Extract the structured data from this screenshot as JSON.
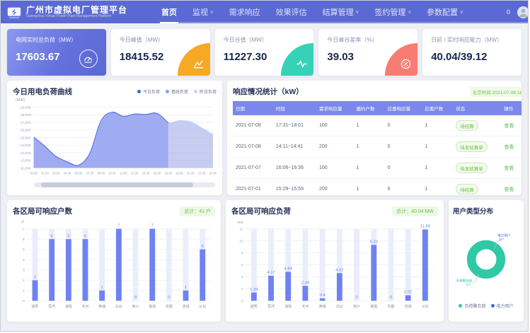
{
  "app": {
    "title": "广州市虚拟电厂管理平台",
    "subtitle": "Guangzhou Virtual Power Plant Management Platform",
    "nav": [
      {
        "label": "首页",
        "active": true,
        "dropdown": false
      },
      {
        "label": "监视",
        "active": false,
        "dropdown": true
      },
      {
        "label": "需求响应",
        "active": false,
        "dropdown": false
      },
      {
        "label": "效果评估",
        "active": false,
        "dropdown": false
      },
      {
        "label": "结算管理",
        "active": false,
        "dropdown": true
      },
      {
        "label": "签约管理",
        "active": false,
        "dropdown": true
      },
      {
        "label": "参数配置",
        "active": false,
        "dropdown": true
      }
    ],
    "notification_count": "0"
  },
  "kpis": [
    {
      "label": "电网实时总负荷（MW）",
      "value": "17603.67",
      "icon": "gauge-icon",
      "accent": "#6572de",
      "primary": true
    },
    {
      "label": "今日峰值（MW）",
      "value": "18415.52",
      "icon": "peak-icon",
      "accent": "#f6a924",
      "primary": false
    },
    {
      "label": "今日谷值（MW）",
      "value": "11227.30",
      "icon": "pulse-icon",
      "accent": "#35d2b7",
      "primary": false
    },
    {
      "label": "今日峰谷差率（%）",
      "value": "39.03",
      "icon": "percent-gauge-icon",
      "accent": "#f97c72",
      "primary": false
    },
    {
      "label": "日前 / 实时响应能力（MW）",
      "value": "40.04/39.12",
      "icon": null,
      "accent": null,
      "primary": false
    }
  ],
  "panels": {
    "load_curve": {
      "title": "今日用电负荷曲线",
      "unit": "(MW)",
      "legend": [
        {
          "name": "今日负荷",
          "color": "#4a63d8"
        },
        {
          "name": "基线负荷",
          "color": "#8b9af0"
        },
        {
          "name": "昨日负荷",
          "color": "#ccd4f4"
        }
      ]
    },
    "response_table": {
      "title": "响应情况统计（kW）",
      "time_badge": "北京时间 2021-07-08 18:10",
      "columns": [
        "日期",
        "时段",
        "需求响应量",
        "邀约户数",
        "应邀响应量",
        "应邀户数",
        "状态",
        "操作"
      ],
      "rows": [
        [
          "2021-07-08",
          "17:31~18:01",
          "100",
          "1",
          "0",
          "1",
          "待结算",
          "查看"
        ],
        [
          "2021-07-08",
          "14:11~14:41",
          "200",
          "1",
          "0",
          "1",
          "待发结算单",
          "查看"
        ],
        [
          "2021-07-07",
          "16:06~16:36",
          "100",
          "1",
          "0",
          "1",
          "待发结算单",
          "查看"
        ],
        [
          "2021-07-01",
          "15:29~15:59",
          "200",
          "1",
          "0",
          "1",
          "待结算",
          "查看"
        ]
      ]
    },
    "district_households": {
      "title": "各区局可响应户数",
      "badge": "总计：41 户"
    },
    "district_load": {
      "title": "各区局可响应负荷",
      "badge": "总计：40.04 MW"
    },
    "user_type": {
      "title": "用户类型分布"
    }
  },
  "chart_data": [
    {
      "type": "area",
      "title": "今日用电负荷曲线",
      "ylabel": "(MW)",
      "x": [
        "00:00",
        "01:30",
        "03:00",
        "04:30",
        "06:00",
        "07:30",
        "09:00",
        "10:30",
        "12:00",
        "13:30",
        "15:00",
        "16:30",
        "18:00",
        "19:30",
        "21:00",
        "22:30",
        "24:00"
      ],
      "ylim": [
        11000,
        19000
      ],
      "ytick_step": 1000,
      "grid": true,
      "legend_position": "top-right",
      "series": [
        {
          "name": "昨日负荷",
          "color": "#c3cbe4",
          "fill": "rgba(196,203,228,0.55)",
          "stroke": false,
          "values": [
            14900,
            13750,
            12450,
            11750,
            11300,
            12700,
            16900,
            18250,
            17750,
            18000,
            18000,
            18150,
            16950,
            17250,
            17050,
            16250,
            15400
          ]
        },
        {
          "name": "基线负荷",
          "color": "#98a6f2",
          "fill": "rgba(152,166,242,0.35)",
          "stroke": false,
          "values": [
            15150,
            13950,
            12600,
            11900,
            11450,
            12800,
            17000,
            18400,
            17900,
            18150,
            18100,
            18250,
            17050,
            17300,
            17150,
            16350,
            15500
          ]
        },
        {
          "name": "今日负荷",
          "color": "#5b70e8",
          "fill": "rgba(122,139,242,0.50)",
          "stroke": true,
          "values": [
            15050,
            13850,
            12500,
            11800,
            11350,
            12900,
            17200,
            18350,
            17800,
            18100,
            18050,
            18200,
            16950,
            null,
            null,
            null,
            null
          ]
        }
      ]
    },
    {
      "type": "bar",
      "title": "各区局可响应户数",
      "ylabel": "户",
      "ylim": [
        0,
        7
      ],
      "ytick_step": 1,
      "categories": [
        "越秀",
        "荔湾",
        "海珠",
        "天河",
        "黄埔",
        "白云",
        "南沙",
        "番禺",
        "花都",
        "增城",
        "从化"
      ],
      "values": [
        2,
        6,
        6,
        6,
        1,
        7,
        0,
        7,
        0,
        1,
        5
      ]
    },
    {
      "type": "bar",
      "title": "各区局可响应负荷",
      "ylabel": "MW",
      "ylim": [
        0,
        12
      ],
      "ytick_step": 2,
      "categories": [
        "越秀",
        "荔湾",
        "海珠",
        "天河",
        "黄埔",
        "白云",
        "南沙",
        "番禺",
        "花都",
        "增城",
        "从化"
      ],
      "values": [
        1.39,
        4.17,
        4.84,
        2.49,
        0.4,
        4.62,
        0,
        9.32,
        0,
        0.92,
        11.89
      ]
    },
    {
      "type": "donut",
      "title": "用户类型分布",
      "slices": [
        {
          "name": "负荷聚合商",
          "value": 1,
          "unit": "户",
          "color": "#2fc9a6"
        },
        {
          "name": "电力用户",
          "value": 0,
          "unit": "户",
          "color": "#3b6ce8"
        }
      ]
    }
  ]
}
